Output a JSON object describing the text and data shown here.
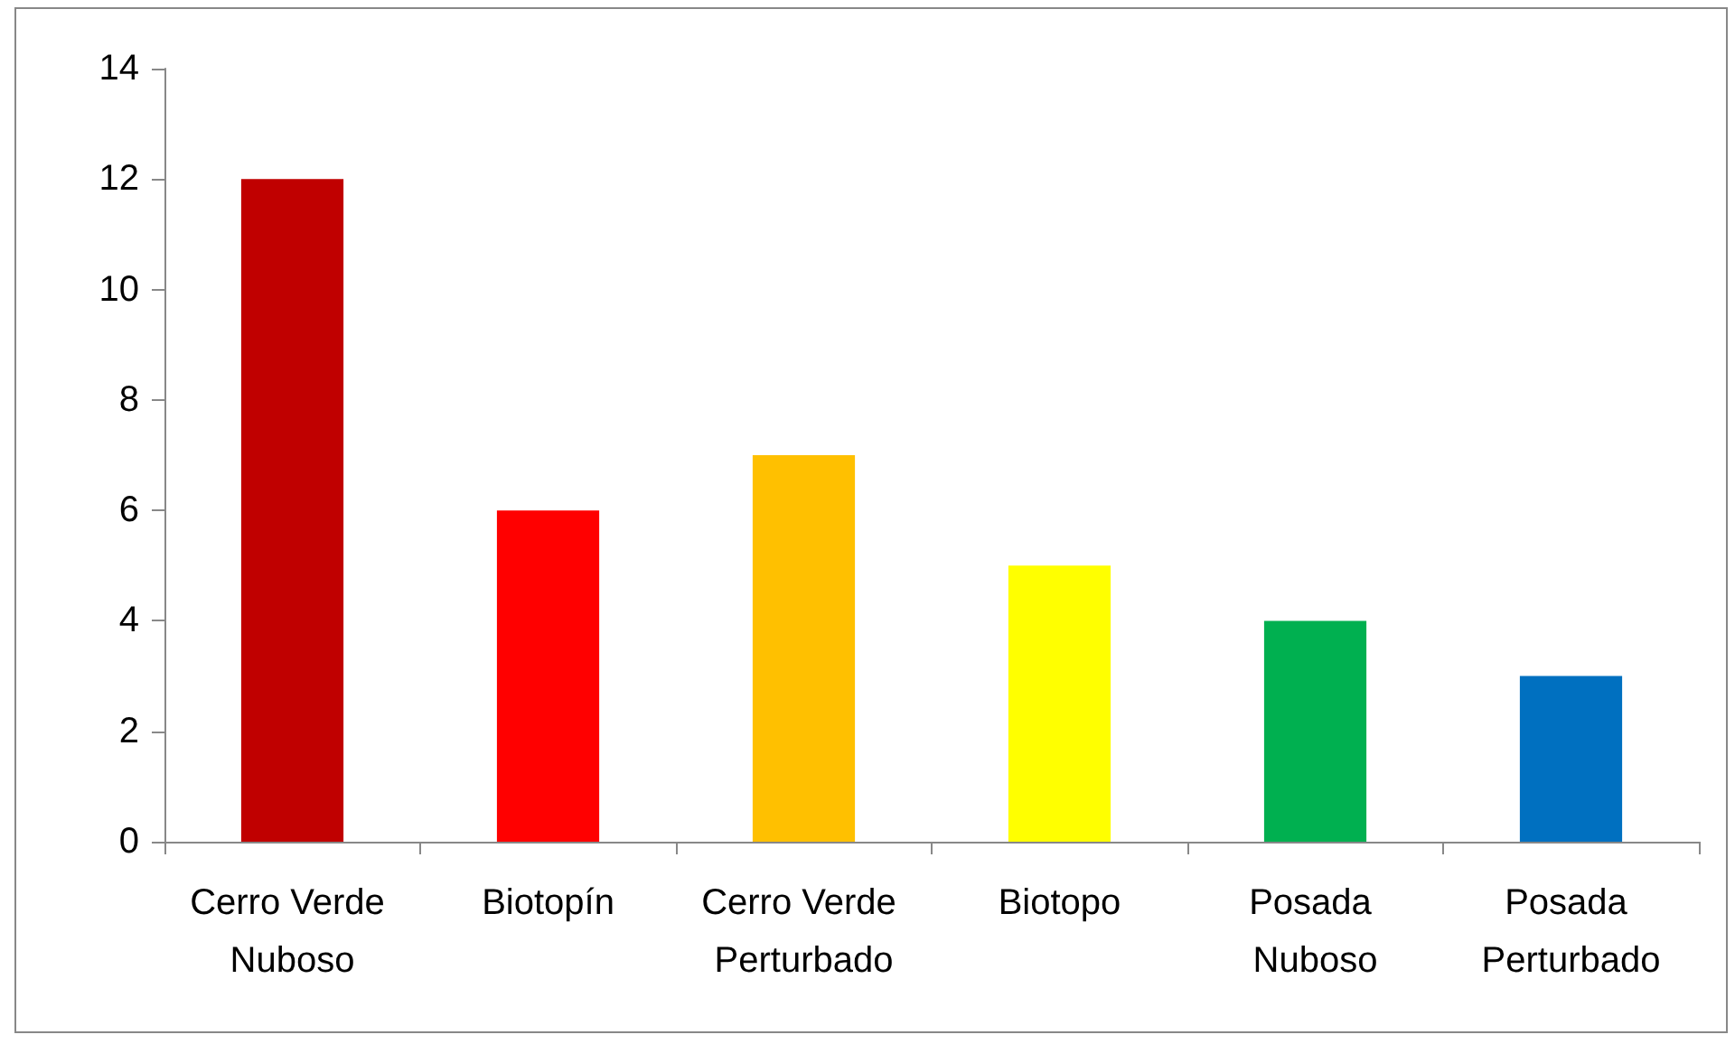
{
  "chart_data": {
    "type": "bar",
    "categories": [
      "Cerro Verde Nuboso",
      "Biotopín",
      "Cerro Verde Perturbado",
      "Biotopo",
      "Posada Nuboso",
      "Posada Perturbado"
    ],
    "values": [
      12,
      6,
      7,
      5,
      4,
      3
    ],
    "colors": [
      "#c00000",
      "#ff0000",
      "#ffc000",
      "#ffff00",
      "#00b050",
      "#0070c0"
    ],
    "ylim": [
      0,
      14
    ],
    "yticks": [
      0,
      2,
      4,
      6,
      8,
      10,
      12,
      14
    ],
    "grid": false
  }
}
